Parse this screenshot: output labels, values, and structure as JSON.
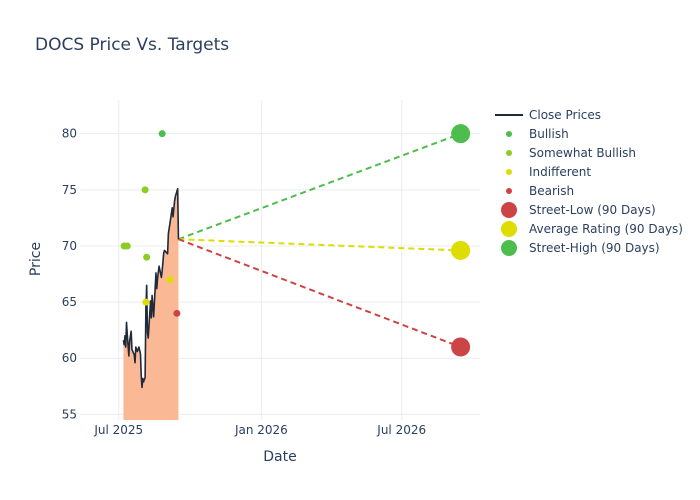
{
  "colors": {
    "close": "#1f2a3a",
    "fill": "#fbb894",
    "bullish": "#4dbd4d",
    "somewhat_bullish": "#8ccc23",
    "indifferent": "#dddd00",
    "bearish": "#cc4444",
    "grid": "#ebecf0"
  },
  "chart_data": {
    "type": "line",
    "title": "DOCS Price Vs. Targets",
    "xlabel": "Date",
    "ylabel": "Price",
    "ylim": [
      54.5,
      83
    ],
    "xlim": [
      "2025-05-12",
      "2026-10-10"
    ],
    "x_ticks": [
      {
        "date": "2025-07-01",
        "label": "Jul 2025"
      },
      {
        "date": "2026-01-01",
        "label": "Jan 2026"
      },
      {
        "date": "2026-07-01",
        "label": "Jul 2026"
      }
    ],
    "y_ticks": [
      55,
      60,
      65,
      70,
      75,
      80
    ],
    "close_prices": [
      [
        "2025-07-07",
        61.6
      ],
      [
        "2025-07-08",
        61.2
      ],
      [
        "2025-07-09",
        62.0
      ],
      [
        "2025-07-10",
        61.0
      ],
      [
        "2025-07-11",
        63.2
      ],
      [
        "2025-07-12",
        62.1
      ],
      [
        "2025-07-14",
        60.2
      ],
      [
        "2025-07-15",
        61.5
      ],
      [
        "2025-07-17",
        62.4
      ],
      [
        "2025-07-18",
        60.8
      ],
      [
        "2025-07-21",
        60.3
      ],
      [
        "2025-07-22",
        59.6
      ],
      [
        "2025-07-23",
        61.0
      ],
      [
        "2025-07-25",
        60.6
      ],
      [
        "2025-07-27",
        61.0
      ],
      [
        "2025-07-29",
        60.4
      ],
      [
        "2025-07-30",
        58.4
      ],
      [
        "2025-07-31",
        57.4
      ],
      [
        "2025-08-01",
        58.2
      ],
      [
        "2025-08-02",
        57.9
      ],
      [
        "2025-08-04",
        58.3
      ],
      [
        "2025-08-05",
        64.5
      ],
      [
        "2025-08-06",
        66.5
      ],
      [
        "2025-08-07",
        62.3
      ],
      [
        "2025-08-08",
        61.8
      ],
      [
        "2025-08-11",
        65.1
      ],
      [
        "2025-08-12",
        63.6
      ],
      [
        "2025-08-13",
        65.6
      ],
      [
        "2025-08-15",
        63.7
      ],
      [
        "2025-08-18",
        67.6
      ],
      [
        "2025-08-19",
        66.2
      ],
      [
        "2025-08-20",
        67.1
      ],
      [
        "2025-08-22",
        68.2
      ],
      [
        "2025-08-25",
        67.2
      ],
      [
        "2025-08-26",
        67.8
      ],
      [
        "2025-08-27",
        68.6
      ],
      [
        "2025-08-28",
        69.4
      ],
      [
        "2025-08-29",
        69.6
      ],
      [
        "2025-09-02",
        69.3
      ],
      [
        "2025-09-03",
        71.1
      ],
      [
        "2025-09-05",
        72.0
      ],
      [
        "2025-09-08",
        73.4
      ],
      [
        "2025-09-09",
        72.6
      ],
      [
        "2025-09-11",
        74.0
      ],
      [
        "2025-09-12",
        74.4
      ],
      [
        "2025-09-15",
        75.1
      ],
      [
        "2025-09-16",
        70.6
      ]
    ],
    "bullish": [
      [
        "2025-08-26",
        80
      ]
    ],
    "somewhat_bullish": [
      [
        "2025-07-08",
        70
      ],
      [
        "2025-07-12",
        70
      ],
      [
        "2025-08-04",
        75
      ],
      [
        "2025-08-06",
        69
      ]
    ],
    "indifferent": [
      [
        "2025-08-05",
        65
      ],
      [
        "2025-09-05",
        67
      ]
    ],
    "bearish": [
      [
        "2025-09-14",
        64
      ]
    ],
    "street_low": {
      "date": "2026-09-15",
      "value": 61
    },
    "average_rating": {
      "date": "2026-09-15",
      "value": 69.6
    },
    "street_high": {
      "date": "2026-09-15",
      "value": 80
    },
    "projection_start": {
      "date": "2025-09-16",
      "value": 70.6
    },
    "legend": [
      "Close Prices",
      "Bullish",
      "Somewhat Bullish",
      "Indifferent",
      "Bearish",
      "Street-Low (90 Days)",
      "Average Rating (90 Days)",
      "Street-High (90 Days)"
    ]
  }
}
